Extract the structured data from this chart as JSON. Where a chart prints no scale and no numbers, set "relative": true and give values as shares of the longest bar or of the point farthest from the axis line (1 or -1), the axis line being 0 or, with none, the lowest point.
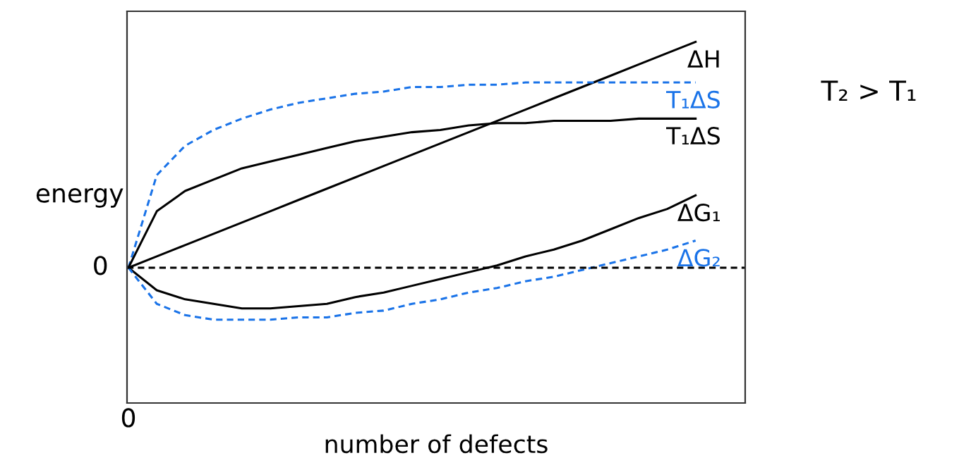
{
  "chart_data": {
    "type": "line",
    "relative": true,
    "xlabel": "number of defects",
    "ylabel": "energy",
    "categories": [
      null,
      null,
      null,
      null,
      null,
      null,
      null,
      null,
      null,
      null,
      null,
      null,
      null,
      null,
      null,
      null,
      null,
      null,
      null,
      null,
      null
    ],
    "series": [
      {
        "name": "ΔH",
        "color": "#000000",
        "line_style": "solid",
        "values": [
          0,
          0.05,
          0.1,
          0.15,
          0.2,
          0.25,
          0.3,
          0.35,
          0.4,
          0.45,
          0.5,
          0.55,
          0.6,
          0.65,
          0.7,
          0.75,
          0.8,
          0.85,
          0.9,
          0.95,
          1
        ]
      },
      {
        "name": "T₁ΔS",
        "color": "#1a73e8",
        "line_style": "dashed",
        "values": [
          0,
          0.41,
          0.54,
          0.61,
          0.66,
          0.7,
          0.73,
          0.75,
          0.77,
          0.78,
          0.8,
          0.8,
          0.81,
          0.81,
          0.82,
          0.82,
          0.82,
          0.82,
          0.82,
          0.82,
          0.82
        ]
      },
      {
        "name": "T₁ΔS",
        "color": "#000000",
        "line_style": "solid",
        "values": [
          0,
          0.25,
          0.34,
          0.39,
          0.44,
          0.47,
          0.5,
          0.53,
          0.56,
          0.58,
          0.6,
          0.61,
          0.63,
          0.64,
          0.64,
          0.65,
          0.65,
          0.65,
          0.66,
          0.66,
          0.66
        ]
      },
      {
        "name": "ΔG₁",
        "color": "#000000",
        "line_style": "solid",
        "values": [
          0,
          -0.1,
          -0.14,
          -0.16,
          -0.18,
          -0.18,
          -0.17,
          -0.16,
          -0.13,
          -0.11,
          -0.08,
          -0.05,
          -0.02,
          0.01,
          0.05,
          0.08,
          0.12,
          0.17,
          0.22,
          0.26,
          0.32
        ]
      },
      {
        "name": "ΔG₂",
        "color": "#1a73e8",
        "line_style": "dashed",
        "values": [
          0,
          -0.16,
          -0.21,
          -0.23,
          -0.23,
          -0.23,
          -0.22,
          -0.22,
          -0.2,
          -0.19,
          -0.16,
          -0.14,
          -0.11,
          -0.09,
          -0.06,
          -0.04,
          -0.01,
          0.02,
          0.05,
          0.08,
          0.12
        ]
      }
    ],
    "ref_lines": [
      {
        "axis": "y",
        "value": 0,
        "label": "0",
        "color": "#000000",
        "line_style": "dashed"
      }
    ],
    "annotations": [
      "0",
      "T₂ > T₁"
    ],
    "legend": false
  }
}
